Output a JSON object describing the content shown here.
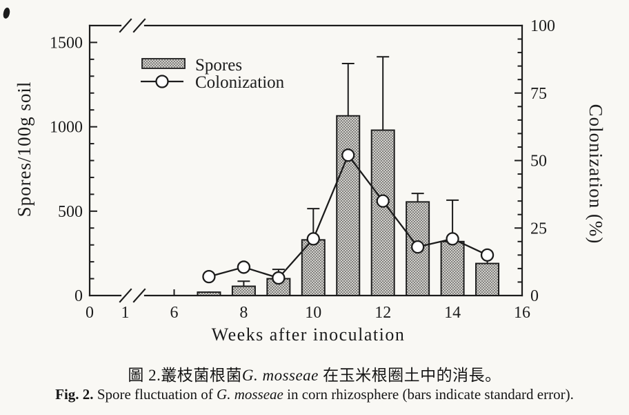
{
  "chart_data": {
    "type": "bar+line combo",
    "x_weeks": [
      7,
      8,
      9,
      10,
      11,
      12,
      13,
      14,
      15
    ],
    "series": [
      {
        "name": "Spores",
        "type": "bar",
        "axis": "left",
        "values": [
          20,
          55,
          100,
          330,
          1065,
          980,
          555,
          320,
          190
        ],
        "upper_errors": [
          0,
          30,
          55,
          185,
          310,
          435,
          50,
          245,
          45
        ]
      },
      {
        "name": "Colonization",
        "type": "line",
        "axis": "right",
        "marker": "open-circle",
        "values": [
          7,
          10.5,
          6.5,
          21,
          52,
          35,
          18,
          21,
          15
        ]
      }
    ],
    "xlabel": "Weeks after inoculation",
    "ylabel_left": "Spores/100g soil",
    "ylabel_right": "Colonization (%)",
    "left_ticks": [
      0,
      500,
      1000,
      1500
    ],
    "left_minor_step": 100,
    "right_ticks": [
      0,
      25,
      50,
      75,
      100
    ],
    "right_minor_step": 5,
    "x_tick_labels": [
      "0",
      "1",
      "6",
      "8",
      "10",
      "12",
      "14",
      "16"
    ],
    "x_axis_break_between": [
      1,
      6
    ],
    "ylim_left": [
      0,
      1600
    ],
    "ylim_right": [
      0,
      100
    ],
    "grid": false,
    "legend_position": "upper-left-inside"
  },
  "caption": {
    "zh_prefix": "圖 2.叢枝菌根菌",
    "zh_species": "G. mosseae",
    "zh_suffix": " 在玉米根圈土中的消長。",
    "en_label": "Fig. 2.",
    "en_part1": " Spore fluctuation of ",
    "en_species": "G. mosseae",
    "en_part2": " in corn rhizosphere (bars indicate standard error)."
  },
  "colors": {
    "ink": "#1c1c1c",
    "paper": "#f9f8f4",
    "bar_fill": "#d2d1cd",
    "bar_dot": "#73726f",
    "marker_fill": "#ffffff"
  }
}
